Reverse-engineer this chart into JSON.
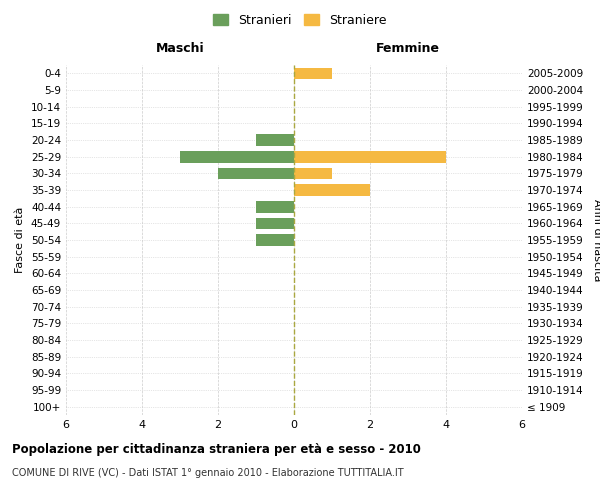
{
  "age_groups": [
    "100+",
    "95-99",
    "90-94",
    "85-89",
    "80-84",
    "75-79",
    "70-74",
    "65-69",
    "60-64",
    "55-59",
    "50-54",
    "45-49",
    "40-44",
    "35-39",
    "30-34",
    "25-29",
    "20-24",
    "15-19",
    "10-14",
    "5-9",
    "0-4"
  ],
  "birth_years": [
    "≤ 1909",
    "1910-1914",
    "1915-1919",
    "1920-1924",
    "1925-1929",
    "1930-1934",
    "1935-1939",
    "1940-1944",
    "1945-1949",
    "1950-1954",
    "1955-1959",
    "1960-1964",
    "1965-1969",
    "1970-1974",
    "1975-1979",
    "1980-1984",
    "1985-1989",
    "1990-1994",
    "1995-1999",
    "2000-2004",
    "2005-2009"
  ],
  "maschi": [
    0,
    0,
    0,
    0,
    0,
    0,
    0,
    0,
    0,
    0,
    1,
    1,
    1,
    0,
    2,
    3,
    1,
    0,
    0,
    0,
    0
  ],
  "femmine": [
    0,
    0,
    0,
    0,
    0,
    0,
    0,
    0,
    0,
    0,
    0,
    0,
    0,
    2,
    1,
    4,
    0,
    0,
    0,
    0,
    1
  ],
  "color_maschi": "#6a9f5b",
  "color_femmine": "#f5b942",
  "xlim": 6,
  "title": "Popolazione per cittadinanza straniera per età e sesso - 2010",
  "subtitle": "COMUNE DI RIVE (VC) - Dati ISTAT 1° gennaio 2010 - Elaborazione TUTTITALIA.IT",
  "ylabel_left": "Fasce di età",
  "ylabel_right": "Anni di nascita",
  "legend_maschi": "Stranieri",
  "legend_femmine": "Straniere",
  "header_maschi": "Maschi",
  "header_femmine": "Femmine",
  "background_color": "#ffffff",
  "grid_color": "#cccccc",
  "bar_height": 0.7
}
